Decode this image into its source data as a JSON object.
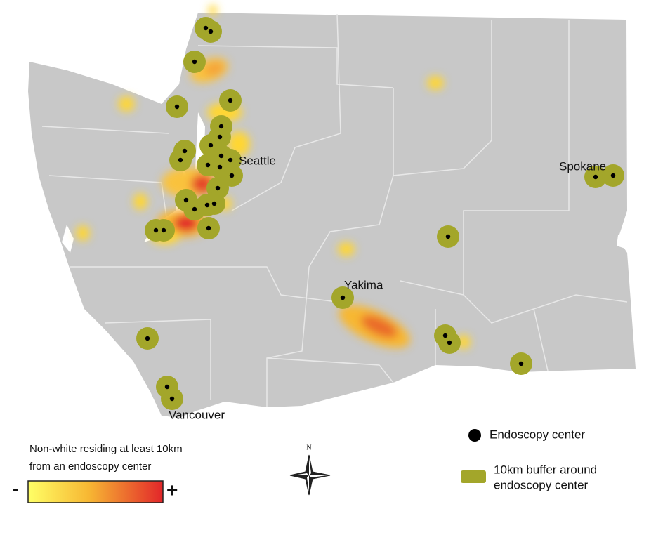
{
  "labels": {
    "seattle": "Seattle",
    "spokane": "Spokane",
    "yakima": "Yakima",
    "vancouver": "Vancouver"
  },
  "legend": {
    "gradient_title": [
      "Non-white residing at least 10km",
      "from an endoscopy center"
    ],
    "minus": "-",
    "plus": "+",
    "center": "Endoscopy center",
    "buffer": [
      "10km buffer around",
      "endoscopy center"
    ]
  },
  "compass": "N"
}
